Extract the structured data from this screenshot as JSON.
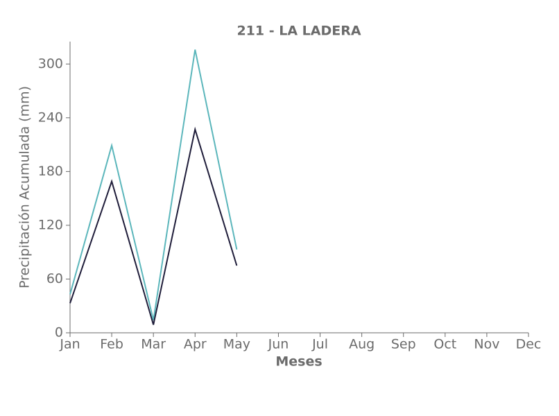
{
  "chart_data": {
    "type": "line",
    "title": "211 - LA LADERA",
    "x_label": "Meses",
    "y_label": "Precipitación Acumulada (mm)",
    "categories": [
      "Jan",
      "Feb",
      "Mar",
      "Apr",
      "May",
      "Jun",
      "Jul",
      "Aug",
      "Sep",
      "Oct",
      "Nov",
      "Dec"
    ],
    "series": [
      {
        "color": "#5bb6bb",
        "values": [
          43,
          209,
          14,
          316,
          93,
          null,
          null,
          null,
          null,
          null,
          null,
          null
        ]
      },
      {
        "color": "#1f1d3a",
        "values": [
          33,
          169,
          9,
          227,
          75,
          null,
          null,
          null,
          null,
          null,
          null,
          null
        ]
      }
    ],
    "ylim": [
      0,
      325
    ],
    "yticks": [
      0,
      60,
      120,
      180,
      240,
      300
    ],
    "grid": false
  }
}
